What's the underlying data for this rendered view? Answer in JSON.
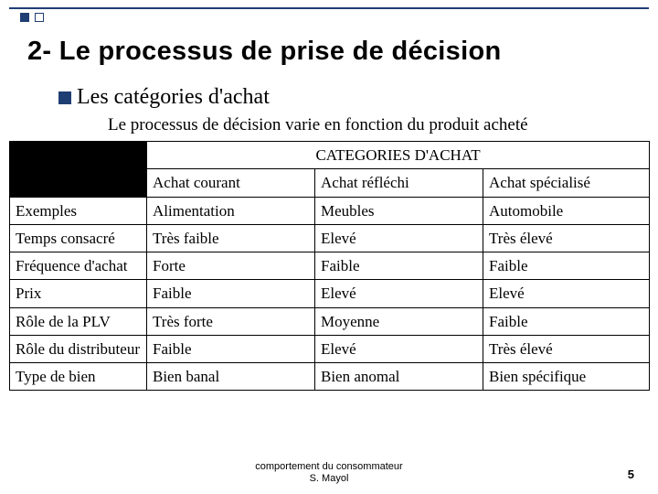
{
  "title": "2- Le processus de prise de décision",
  "subheading": "Les catégories d'achat",
  "intro": "Le processus de décision varie en fonction du produit acheté",
  "table": {
    "header_group": "CATEGORIES D'ACHAT",
    "columns": [
      "",
      "Achat courant",
      "Achat réfléchi",
      "Achat spécialisé"
    ],
    "rows": [
      [
        "Exemples",
        "Alimentation",
        "Meubles",
        "Automobile"
      ],
      [
        "Temps consacré",
        "Très faible",
        "Elevé",
        "Très élevé"
      ],
      [
        "Fréquence d'achat",
        "Forte",
        "Faible",
        "Faible"
      ],
      [
        "Prix",
        "Faible",
        "Elevé",
        "Elevé"
      ],
      [
        "Rôle de la PLV",
        "Très forte",
        "Moyenne",
        "Faible"
      ],
      [
        "Rôle du distributeur",
        "Faible",
        "Elevé",
        "Très élevé"
      ],
      [
        "Type de bien",
        "Bien banal",
        "Bien anomal",
        "Bien spécifique"
      ]
    ]
  },
  "footer": {
    "line1": "comportement du consommateur",
    "line2": "S. Mayol"
  },
  "page_number": "5",
  "colors": {
    "accent": "#1f3e74",
    "black": "#000000",
    "bg": "#ffffff"
  }
}
